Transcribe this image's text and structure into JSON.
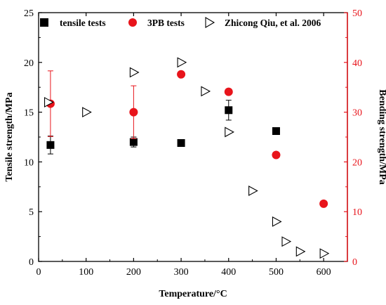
{
  "chart_data": {
    "type": "scatter",
    "xlabel": "Temperature/°C",
    "ylabel_left": "Tensile strength/MPa",
    "ylabel_right": "Bending strength/MPa",
    "xlim": [
      0,
      650
    ],
    "ylim_left": [
      0,
      25
    ],
    "ylim_right": [
      0,
      50
    ],
    "x_ticks": [
      0,
      100,
      200,
      300,
      400,
      500,
      600
    ],
    "y_ticks_left": [
      0,
      5,
      10,
      15,
      20,
      25
    ],
    "y_ticks_right": [
      0,
      10,
      20,
      30,
      40,
      50
    ],
    "grid": false,
    "legend_position": "top",
    "colors": {
      "tensile": "#000000",
      "bend": "#e8141b",
      "qiu": "#000000",
      "right_axis": "#e8141b"
    },
    "series": [
      {
        "name": "tensile tests",
        "axis": "left",
        "marker": "square",
        "x": [
          25,
          200,
          300,
          400,
          500
        ],
        "y": [
          11.7,
          12.0,
          11.9,
          15.2,
          13.1
        ],
        "err": [
          0.9,
          0.5,
          0,
          1.0,
          0
        ]
      },
      {
        "name": "3PB tests",
        "axis": "right",
        "marker": "circle",
        "x": [
          25,
          200,
          300,
          400,
          500,
          600
        ],
        "y": [
          31.7,
          30.0,
          37.6,
          34.1,
          21.4,
          11.6
        ],
        "err": [
          6.6,
          5.3,
          0,
          0,
          0,
          0
        ]
      },
      {
        "name": "Zhicong Qiu, et al. 2006",
        "axis": "left",
        "marker": "triangle-right",
        "x": [
          20,
          100,
          200,
          300,
          350,
          400,
          450,
          500,
          520,
          550,
          600
        ],
        "y": [
          16.0,
          15.0,
          19.0,
          20.0,
          17.1,
          13.0,
          7.1,
          4.0,
          2.0,
          1.0,
          0.8
        ]
      }
    ]
  }
}
